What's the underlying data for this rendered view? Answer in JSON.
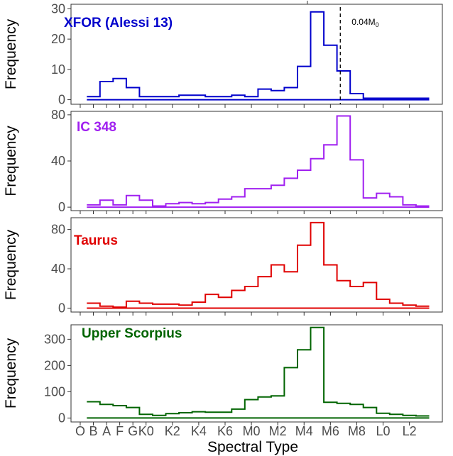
{
  "chart_data": {
    "type": "line",
    "xlabel": "Spectral Type",
    "ylabel": "Frequency",
    "x_tick_labels": [
      "O",
      "B",
      "A",
      "F",
      "G",
      "K0",
      "K2",
      "K4",
      "K6",
      "M0",
      "M2",
      "M4",
      "M6",
      "M8",
      "L0",
      "L2"
    ],
    "x_tick_positions": [
      0,
      1,
      2,
      3,
      4,
      5,
      7,
      9,
      11,
      13,
      15,
      17,
      19,
      21,
      23,
      25
    ],
    "xlim": [
      -0.7,
      27.5
    ],
    "bin_edges": [
      0.5,
      1.5,
      2.5,
      3.5,
      4.5,
      5.5,
      6.5,
      7.5,
      8.5,
      9.5,
      10.5,
      11.5,
      12.5,
      13.5,
      14.5,
      15.5,
      16.5,
      17.5,
      18.5,
      19.5,
      20.5,
      21.5,
      22.5,
      23.5,
      24.5,
      25.5,
      26.5
    ],
    "panels": [
      {
        "title": "XFOR (Alessi 13)",
        "color": "#0000cc",
        "yticks": [
          0,
          10,
          20,
          30
        ],
        "ylim": [
          -1.5,
          31.5
        ],
        "series": [
          {
            "values": [
              1,
              6,
              7,
              4,
              1,
              1,
              1,
              1.5,
              1.5,
              1,
              1,
              1.5,
              1,
              3.5,
              3,
              4,
              11,
              29,
              18,
              9.5,
              2,
              0.5,
              0.5,
              0.5,
              0.5,
              0.5
            ]
          },
          {
            "values": [
              0,
              0,
              0,
              0,
              0,
              0,
              0,
              0,
              0,
              0,
              0,
              0,
              0,
              0,
              0,
              0,
              0,
              0,
              0,
              0,
              0,
              0,
              0,
              0,
              0,
              0
            ]
          }
        ],
        "vline": {
          "x": 19.75,
          "label": "0.04M",
          "label_sub": "0"
        },
        "top_tick_x": 17.25
      },
      {
        "title": "IC 348",
        "color": "#a020f0",
        "yticks": [
          0,
          40,
          80
        ],
        "ylim": [
          -3,
          83
        ],
        "series": [
          {
            "values": [
              2,
              6,
              2,
              10,
              6,
              1,
              3,
              4,
              3,
              4,
              7,
              9,
              16,
              16,
              19,
              25,
              32,
              42,
              54,
              79,
              41,
              8,
              12,
              9,
              2,
              1
            ]
          },
          {
            "values": [
              0,
              0,
              0,
              0,
              0,
              0,
              0,
              0,
              0,
              0,
              0,
              0,
              0,
              0,
              0,
              0,
              0,
              0,
              0,
              0,
              0,
              0,
              0,
              0,
              0,
              0
            ]
          }
        ]
      },
      {
        "title": "Taurus",
        "color": "#e00000",
        "yticks": [
          0,
          40,
          80
        ],
        "ylim": [
          -4,
          92
        ],
        "series": [
          {
            "values": [
              5,
              2,
              1,
              7,
              5,
              4,
              4,
              3,
              6,
              14,
              11,
              18,
              22,
              32,
              44,
              37,
              64,
              87,
              44,
              28,
              22,
              26,
              9,
              5,
              3,
              2
            ]
          },
          {
            "values": [
              0,
              0,
              0,
              0,
              0,
              0,
              0,
              0,
              0,
              0,
              0,
              0,
              0,
              0,
              0,
              0,
              0,
              0,
              0,
              0,
              0,
              0,
              0,
              0,
              0,
              0
            ]
          }
        ]
      },
      {
        "title": "Upper Scorpius",
        "color": "#006400",
        "yticks": [
          0,
          100,
          200,
          300
        ],
        "ylim": [
          -15,
          355
        ],
        "series": [
          {
            "values": [
              62,
              52,
              47,
              40,
              14,
              10,
              17,
              20,
              24,
              22,
              22,
              34,
              70,
              80,
              84,
              192,
              260,
              345,
              60,
              56,
              52,
              40,
              18,
              14,
              10,
              8
            ]
          },
          {
            "values": [
              0,
              0,
              0,
              0,
              0,
              0,
              0,
              0,
              0,
              0,
              0,
              0,
              0,
              0,
              0,
              0,
              0,
              0,
              0,
              0,
              0,
              0,
              0,
              0,
              0,
              0
            ]
          }
        ]
      }
    ]
  }
}
